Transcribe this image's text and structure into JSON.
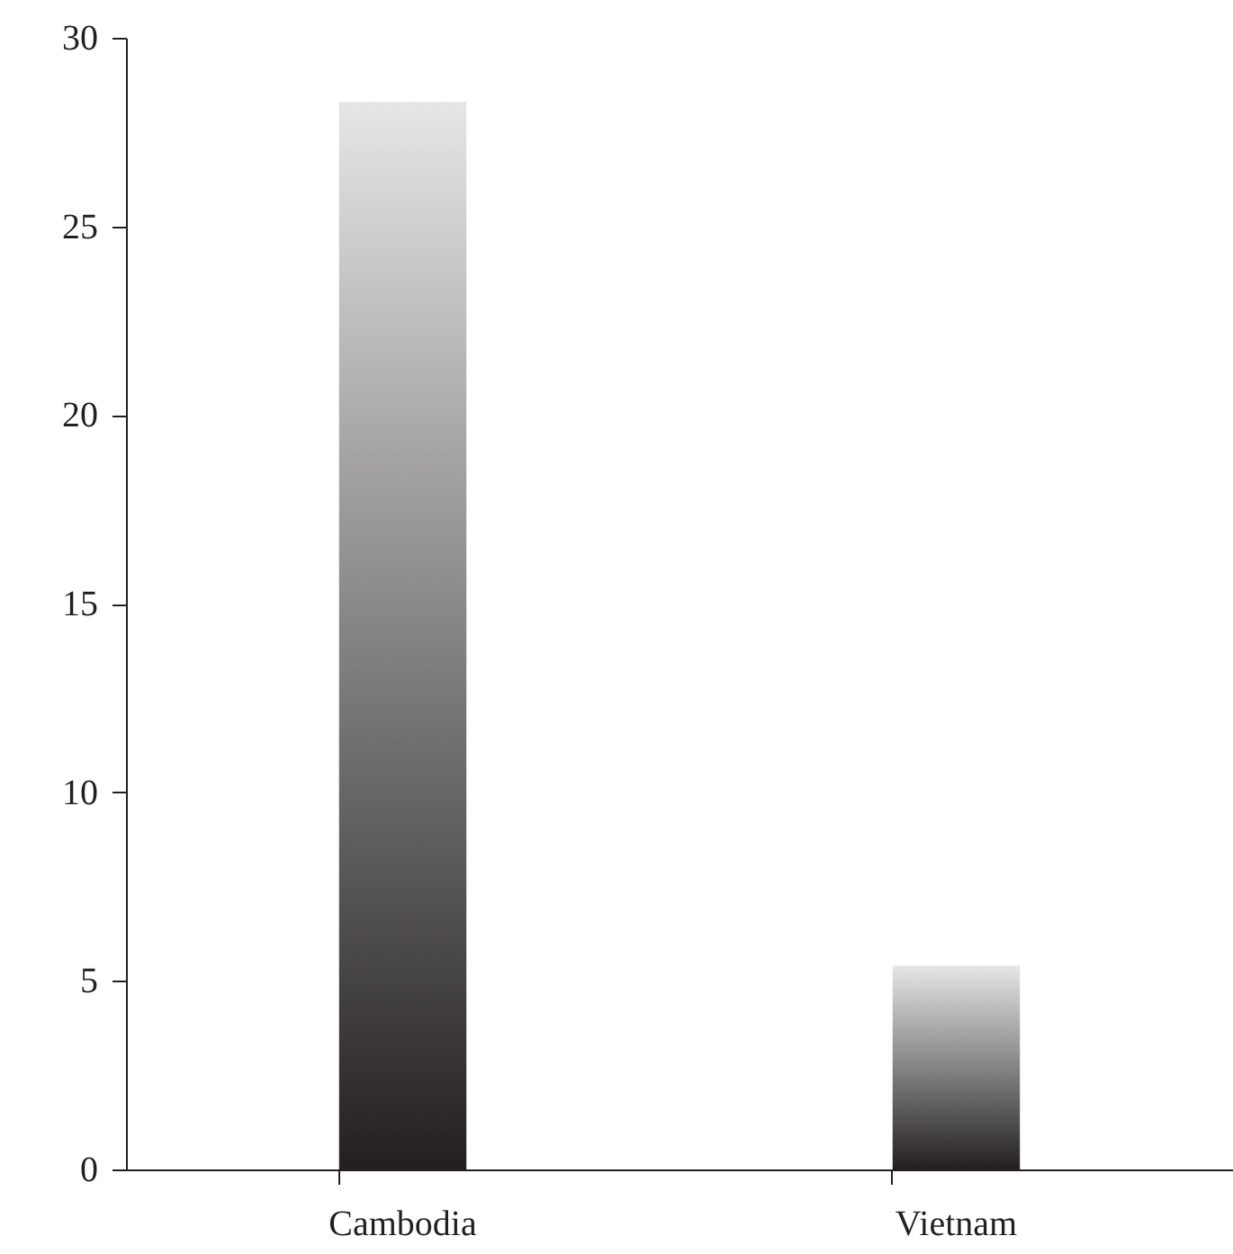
{
  "chart_data": {
    "type": "bar",
    "categories": [
      "Cambodia",
      "Vietnam"
    ],
    "values": [
      28.3,
      5.4
    ],
    "color": "#231f20",
    "ylim": [
      0,
      30
    ],
    "yticks": [
      0,
      5,
      10,
      15,
      20,
      25,
      30
    ],
    "grid": false,
    "legend": false
  }
}
